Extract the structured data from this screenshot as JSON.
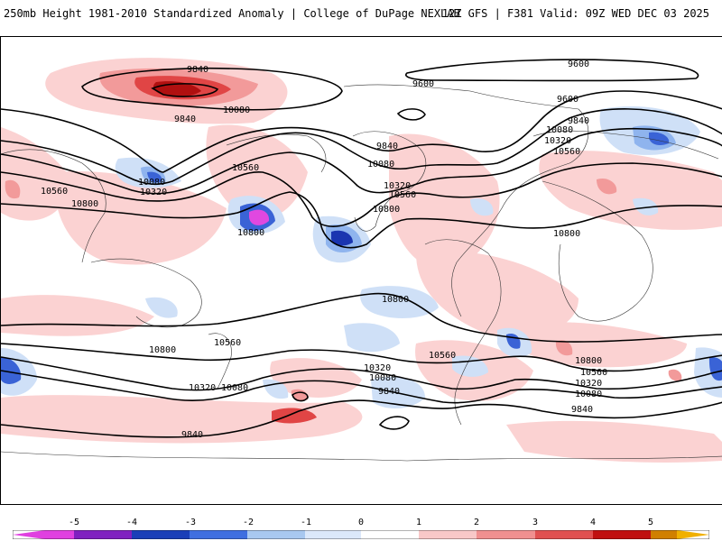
{
  "header": {
    "title": "250mb Height 1981-2010 Standardized Anomaly | College of DuPage NEXLAB",
    "run_info": "12Z GFS | F381 Valid: 09Z WED DEC 03 2025"
  },
  "contour_labels": {
    "c1": "9840",
    "c2": "10080",
    "c3": "9840",
    "c4": "9600",
    "c5": "9600",
    "c6": "9600",
    "c7": "9840",
    "c8": "10080",
    "c9": "10320",
    "c10": "10560",
    "c11": "9840",
    "c12": "10080",
    "c13": "10320",
    "c14": "10560",
    "c15": "10800",
    "c16": "10560",
    "c17": "10080",
    "c18": "10320",
    "c19": "10560",
    "c20": "10800",
    "c21": "10800",
    "c22": "10800",
    "c23": "10800",
    "c24": "10800",
    "c25": "10560",
    "c26": "10320",
    "c27": "10080",
    "c28": "10560",
    "c29": "10320",
    "c30": "10080",
    "c31": "9840",
    "c32": "10800",
    "c33": "10560",
    "c34": "10320",
    "c35": "10080",
    "c36": "9840",
    "c37": "9840"
  },
  "legend": {
    "ticks": [
      "-5",
      "-4",
      "-3",
      "-2",
      "-1",
      "0",
      "1",
      "2",
      "3",
      "4",
      "5"
    ],
    "colors": [
      "#e040e0",
      "#8020c0",
      "#1a3fb8",
      "#3f6fe0",
      "#a8c8f0",
      "#dbe8fa",
      "#ffffff",
      "#ffffff",
      "#f8c8c8",
      "#f09090",
      "#e05050",
      "#c01010",
      "#d08000",
      "#f0b000"
    ]
  },
  "anomaly_colors": {
    "pos1": "#fbd2d2",
    "pos2": "#f29a9a",
    "pos3": "#e04545",
    "pos4": "#b01010",
    "neg1": "#cfe0f7",
    "neg2": "#8fb4ee",
    "neg3": "#3a63d6",
    "neg4": "#1a35b0",
    "neg5": "#e048e0"
  }
}
